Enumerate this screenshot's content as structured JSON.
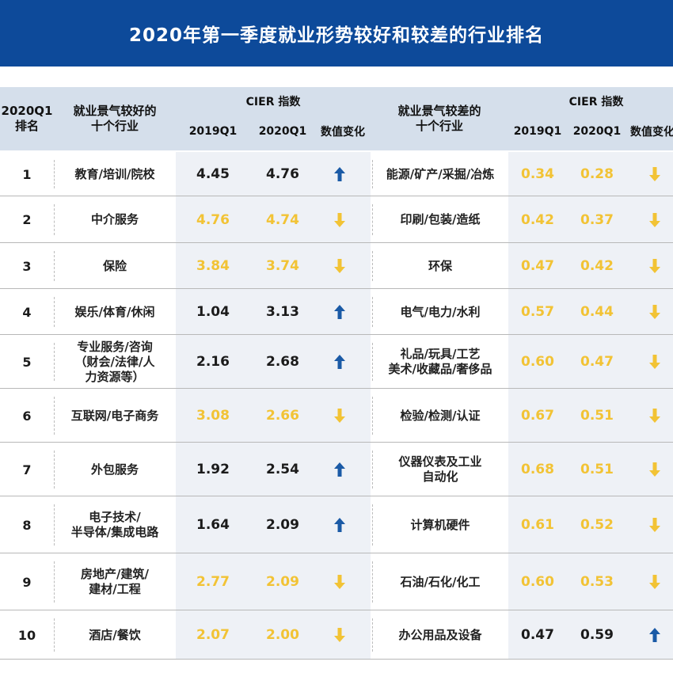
{
  "title": "2020年第一季度就业形势较好和较差的行业排名",
  "header": {
    "rank": "2020Q1\n排名",
    "good_industries": "就业景气较好的\n十个行业",
    "bad_industries": "就业景气较差的\n十个行业",
    "cier_index": "CIER 指数",
    "y2019": "2019Q1",
    "y2020": "2020Q1",
    "change": "数值变化"
  },
  "colors": {
    "banner": "#0d4a9a",
    "header_bg": "#d5dfeb",
    "increase_arrow": "#1a5aa6",
    "decrease_arrow": "#f2c335",
    "decrease_number": "#f2c335"
  },
  "chart_data": {
    "type": "table",
    "title": "2020年第一季度就业形势较好和较差的行业排名",
    "rows": [
      {
        "rank": "1",
        "good": {
          "name": "教育/培训/院校",
          "v2019": 4.45,
          "v2020": 4.76,
          "change": "up"
        },
        "bad": {
          "name": "能源/矿产/采掘/冶炼",
          "v2019": 0.34,
          "v2020": 0.28,
          "change": "down"
        }
      },
      {
        "rank": "2",
        "good": {
          "name": "中介服务",
          "v2019": 4.76,
          "v2020": 4.74,
          "change": "down"
        },
        "bad": {
          "name": "印刷/包装/造纸",
          "v2019": 0.42,
          "v2020": 0.37,
          "change": "down"
        }
      },
      {
        "rank": "3",
        "good": {
          "name": "保险",
          "v2019": 3.84,
          "v2020": 3.74,
          "change": "down"
        },
        "bad": {
          "name": "环保",
          "v2019": 0.47,
          "v2020": 0.42,
          "change": "down"
        }
      },
      {
        "rank": "4",
        "good": {
          "name": "娱乐/体育/休闲",
          "v2019": 1.04,
          "v2020": 3.13,
          "change": "up"
        },
        "bad": {
          "name": "电气/电力/水利",
          "v2019": 0.57,
          "v2020": 0.44,
          "change": "down"
        }
      },
      {
        "rank": "5",
        "good": {
          "name": "专业服务/咨询\n（财会/法律/人\n力资源等）",
          "v2019": 2.16,
          "v2020": 2.68,
          "change": "up"
        },
        "bad": {
          "name": "礼品/玩具/工艺\n美术/收藏品/奢侈品",
          "v2019": 0.6,
          "v2020": 0.47,
          "change": "down"
        }
      },
      {
        "rank": "6",
        "good": {
          "name": "互联网/电子商务",
          "v2019": 3.08,
          "v2020": 2.66,
          "change": "down"
        },
        "bad": {
          "name": "检验/检测/认证",
          "v2019": 0.67,
          "v2020": 0.51,
          "change": "down"
        }
      },
      {
        "rank": "7",
        "good": {
          "name": "外包服务",
          "v2019": 1.92,
          "v2020": 2.54,
          "change": "up"
        },
        "bad": {
          "name": "仪器仪表及工业\n自动化",
          "v2019": 0.68,
          "v2020": 0.51,
          "change": "down"
        }
      },
      {
        "rank": "8",
        "good": {
          "name": "电子技术/\n半导体/集成电路",
          "v2019": 1.64,
          "v2020": 2.09,
          "change": "up"
        },
        "bad": {
          "name": "计算机硬件",
          "v2019": 0.61,
          "v2020": 0.52,
          "change": "down"
        }
      },
      {
        "rank": "9",
        "good": {
          "name": "房地产/建筑/\n建材/工程",
          "v2019": 2.77,
          "v2020": 2.09,
          "change": "down"
        },
        "bad": {
          "name": "石油/石化/化工",
          "v2019": 0.6,
          "v2020": 0.53,
          "change": "down"
        }
      },
      {
        "rank": "10",
        "good": {
          "name": "酒店/餐饮",
          "v2019": 2.07,
          "v2020": 2.0,
          "change": "down"
        },
        "bad": {
          "name": "办公用品及设备",
          "v2019": 0.47,
          "v2020": 0.59,
          "change": "up"
        }
      }
    ]
  }
}
